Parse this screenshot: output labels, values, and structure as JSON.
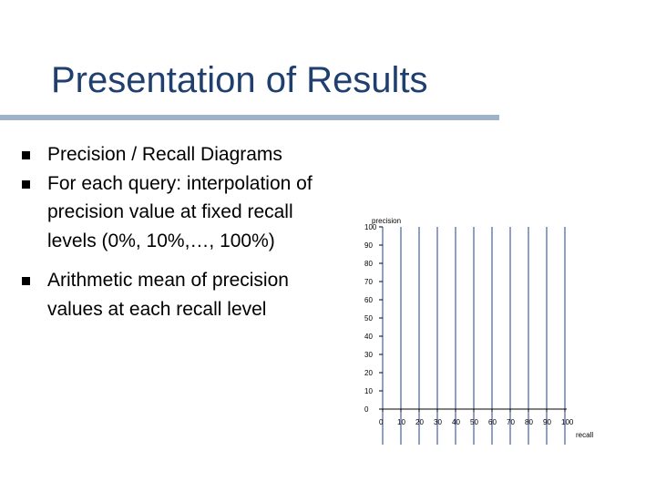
{
  "slide": {
    "title": "Presentation of Results",
    "bullets": [
      "Precision / Recall Diagrams",
      "For each query: interpolation of precision value at fixed recall levels (0%, 10%,…, 100%)",
      "Arithmetic mean of precision values at each recall level"
    ]
  },
  "diagram": {
    "y_title": "precision",
    "x_title": "recall",
    "y_ticks": [
      "0",
      "10",
      "20",
      "30",
      "40",
      "50",
      "60",
      "70",
      "80",
      "90",
      "100"
    ],
    "x_ticks": [
      "0",
      "10",
      "20",
      "30",
      "40",
      "50",
      "60",
      "70",
      "80",
      "90",
      "100"
    ],
    "line_color": "#1f3f8f"
  }
}
